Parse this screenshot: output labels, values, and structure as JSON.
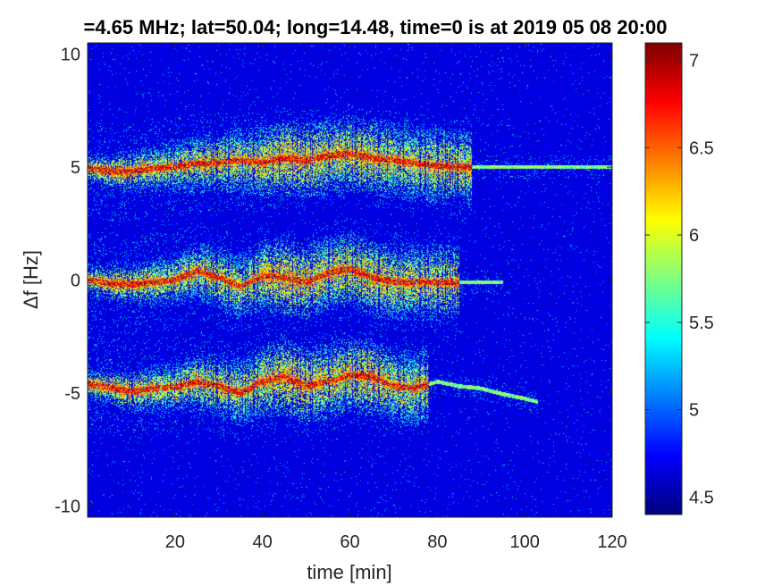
{
  "chart_data": {
    "type": "heatmap",
    "title": "=4.65 MHz;  lat=50.04; long=14.48, time=0 is at 2019 05 08 20:00",
    "xlabel": "time [min]",
    "ylabel": "Δf [Hz]",
    "xlim": [
      0,
      120
    ],
    "ylim": [
      -10.5,
      10.5
    ],
    "xticks": [
      20,
      40,
      60,
      80,
      100,
      120
    ],
    "yticks": [
      10,
      5,
      0,
      -5,
      -10
    ],
    "xtick_labels": [
      "20",
      "40",
      "60",
      "80",
      "100",
      "120"
    ],
    "ytick_labels": [
      "10",
      "5",
      "0",
      "-5",
      "-10"
    ],
    "colorbar": {
      "colormap": "jet",
      "range": [
        4.4,
        7.1
      ],
      "ticks": [
        7,
        6.5,
        6,
        5.5,
        5,
        4.5
      ],
      "tick_labels": [
        "7",
        "6.5",
        "6",
        "5.5",
        "5",
        "4.5"
      ]
    },
    "background_color": "#00008f",
    "bands": [
      {
        "center_hz": 5,
        "active_until_min": 88,
        "tail_until_min": 120,
        "ridge": [
          [
            0,
            4.95
          ],
          [
            5,
            4.8
          ],
          [
            10,
            4.8
          ],
          [
            15,
            4.95
          ],
          [
            20,
            5.0
          ],
          [
            25,
            5.15
          ],
          [
            30,
            5.2
          ],
          [
            35,
            5.3
          ],
          [
            40,
            5.2
          ],
          [
            45,
            5.4
          ],
          [
            50,
            5.3
          ],
          [
            55,
            5.5
          ],
          [
            60,
            5.6
          ],
          [
            65,
            5.4
          ],
          [
            70,
            5.3
          ],
          [
            75,
            5.15
          ],
          [
            80,
            5.05
          ],
          [
            85,
            5.0
          ],
          [
            90,
            5.0
          ],
          [
            120,
            5.0
          ]
        ]
      },
      {
        "center_hz": 0,
        "active_until_min": 85,
        "tail_until_min": 95,
        "ridge": [
          [
            0,
            0
          ],
          [
            5,
            -0.15
          ],
          [
            10,
            -0.2
          ],
          [
            15,
            -0.1
          ],
          [
            20,
            0
          ],
          [
            25,
            0.4
          ],
          [
            30,
            0.1
          ],
          [
            35,
            -0.3
          ],
          [
            40,
            0.2
          ],
          [
            45,
            0.1
          ],
          [
            50,
            -0.1
          ],
          [
            55,
            0.3
          ],
          [
            60,
            0.5
          ],
          [
            65,
            0.1
          ],
          [
            70,
            -0.1
          ],
          [
            75,
            -0.1
          ],
          [
            80,
            -0.1
          ],
          [
            85,
            -0.1
          ],
          [
            90,
            -0.1
          ],
          [
            95,
            -0.1
          ]
        ]
      },
      {
        "center_hz": -5,
        "active_until_min": 78,
        "tail_until_min": 103,
        "ridge": [
          [
            0,
            -4.6
          ],
          [
            5,
            -4.75
          ],
          [
            10,
            -4.95
          ],
          [
            15,
            -4.8
          ],
          [
            20,
            -4.75
          ],
          [
            25,
            -4.5
          ],
          [
            30,
            -4.7
          ],
          [
            35,
            -5.0
          ],
          [
            40,
            -4.5
          ],
          [
            45,
            -4.3
          ],
          [
            50,
            -4.7
          ],
          [
            55,
            -4.5
          ],
          [
            60,
            -4.2
          ],
          [
            65,
            -4.3
          ],
          [
            70,
            -4.7
          ],
          [
            75,
            -4.8
          ],
          [
            80,
            -4.5
          ],
          [
            85,
            -4.7
          ],
          [
            90,
            -4.8
          ],
          [
            95,
            -5.05
          ],
          [
            100,
            -5.25
          ],
          [
            103,
            -5.4
          ]
        ]
      }
    ]
  }
}
